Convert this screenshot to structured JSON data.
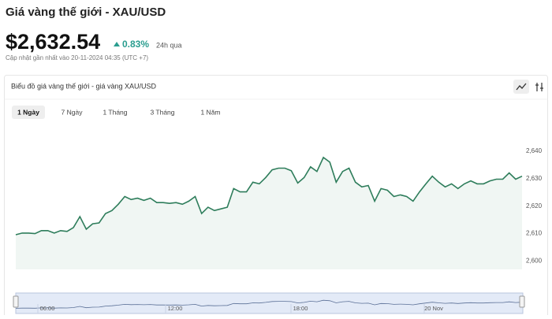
{
  "header": {
    "title": "Giá vàng thế giới - XAU/USD",
    "price": "$2,632.54",
    "change": "0.83%",
    "period": "24h qua",
    "updated": "Cập nhật gần nhất vào 20-11-2024 04:35 (UTC +7)"
  },
  "panel": {
    "title": "Biểu đồ giá vàng thế giới - giá vàng XAU/USD",
    "tabs": [
      "1 Ngày",
      "7 Ngày",
      "1 Tháng",
      "3 Tháng",
      "1 Năm"
    ],
    "active_tab": 0
  },
  "navigator": {
    "labels": [
      "06:00",
      "12:00",
      "18:00",
      "20 Nov"
    ]
  },
  "chart_data": {
    "type": "line",
    "color": "#2e7d5b",
    "values": [
      2609.6,
      2610.2,
      2610.2,
      2610.0,
      2611.1,
      2611.1,
      2610.2,
      2611.1,
      2610.8,
      2612.2,
      2616.2,
      2611.6,
      2613.6,
      2613.9,
      2617.3,
      2618.4,
      2620.7,
      2623.5,
      2622.4,
      2622.9,
      2622.1,
      2622.9,
      2621.3,
      2621.3,
      2621.0,
      2621.3,
      2620.7,
      2621.8,
      2623.5,
      2617.3,
      2619.6,
      2618.4,
      2619.0,
      2619.6,
      2626.4,
      2625.2,
      2625.2,
      2628.7,
      2628.1,
      2630.4,
      2633.2,
      2633.8,
      2633.8,
      2632.9,
      2628.4,
      2630.4,
      2634.3,
      2632.6,
      2637.7,
      2636.0,
      2628.7,
      2632.6,
      2633.8,
      2628.7,
      2627.0,
      2627.5,
      2621.8,
      2626.4,
      2625.8,
      2623.5,
      2624.1,
      2623.5,
      2621.8,
      2625.2,
      2628.1,
      2630.9,
      2628.7,
      2627.0,
      2628.1,
      2626.4,
      2628.1,
      2629.2,
      2628.1,
      2628.1,
      2629.2,
      2629.8,
      2629.8,
      2632.1,
      2629.8,
      2630.9
    ],
    "ylim": [
      2597,
      2652
    ],
    "yticks": [
      {
        "value": 2600,
        "label": "2,600"
      },
      {
        "value": 2610,
        "label": "2,610"
      },
      {
        "value": 2620,
        "label": "2,620"
      },
      {
        "value": 2630,
        "label": "2,630"
      },
      {
        "value": 2640,
        "label": "2,640"
      }
    ]
  }
}
